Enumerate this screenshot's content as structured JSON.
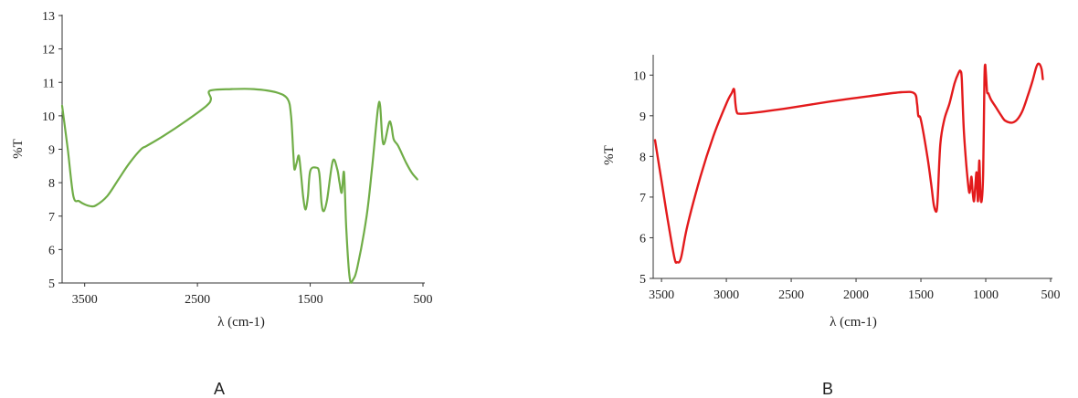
{
  "chart_data": [
    {
      "type": "line",
      "panel_label": "A",
      "xlabel": "λ (cm-1)",
      "ylabel": "%T",
      "xlim": [
        3700,
        500
      ],
      "ylim": [
        5,
        13
      ],
      "x_ticks": [
        3500,
        2500,
        1500,
        500
      ],
      "y_ticks": [
        5,
        6,
        7,
        8,
        9,
        10,
        11,
        12,
        13
      ],
      "grid": false,
      "color": "#70ad47",
      "series": [
        {
          "x": [
            3700,
            3650,
            3600,
            3550,
            3500,
            3450,
            3400,
            3300,
            3200,
            3100,
            3000,
            2950,
            2800,
            2600,
            2420,
            2380,
            2390,
            2200,
            2000,
            1800,
            1700,
            1670,
            1650,
            1640,
            1620,
            1600,
            1580,
            1560,
            1540,
            1520,
            1500,
            1450,
            1420,
            1400,
            1380,
            1350,
            1300,
            1260,
            1240,
            1220,
            1200,
            1180,
            1150,
            1120,
            1080,
            1000,
            950,
            900,
            880,
            860,
            840,
            800,
            780,
            760,
            720,
            650,
            600,
            550
          ],
          "y": [
            10.3,
            9.0,
            7.6,
            7.45,
            7.35,
            7.3,
            7.32,
            7.6,
            8.1,
            8.6,
            9.0,
            9.1,
            9.4,
            9.85,
            10.3,
            10.5,
            10.75,
            10.8,
            10.8,
            10.7,
            10.5,
            10.0,
            8.9,
            8.4,
            8.6,
            8.8,
            8.2,
            7.5,
            7.2,
            7.6,
            8.35,
            8.45,
            8.3,
            7.4,
            7.15,
            7.5,
            8.65,
            8.4,
            8.0,
            7.7,
            8.3,
            6.6,
            5.15,
            5.1,
            5.5,
            7.0,
            8.5,
            10.2,
            10.3,
            9.3,
            9.2,
            9.8,
            9.7,
            9.3,
            9.1,
            8.6,
            8.3,
            8.1
          ]
        }
      ]
    },
    {
      "type": "line",
      "panel_label": "B",
      "xlabel": "λ (cm-1)",
      "ylabel": "%T",
      "xlim": [
        3550,
        500
      ],
      "ylim": [
        5,
        10.5
      ],
      "x_ticks": [
        3500,
        3000,
        2500,
        2000,
        1500,
        1000,
        500
      ],
      "y_ticks": [
        5,
        6,
        7,
        8,
        9,
        10
      ],
      "grid": false,
      "color": "#e31a1c",
      "series": [
        {
          "x": [
            3550,
            3500,
            3450,
            3400,
            3380,
            3350,
            3300,
            3200,
            3100,
            3000,
            2960,
            2940,
            2930,
            2920,
            2900,
            2800,
            2500,
            2200,
            1900,
            1650,
            1550,
            1530,
            1520,
            1500,
            1450,
            1420,
            1400,
            1380,
            1370,
            1350,
            1320,
            1280,
            1240,
            1210,
            1195,
            1185,
            1170,
            1150,
            1130,
            1120,
            1110,
            1100,
            1090,
            1080,
            1070,
            1060,
            1050,
            1040,
            1030,
            1020,
            1010,
            1005,
            1000,
            990,
            980,
            960,
            920,
            880,
            850,
            800,
            760,
            720,
            680,
            640,
            610,
            590,
            570,
            560
          ],
          "y": [
            8.4,
            7.4,
            6.4,
            5.5,
            5.4,
            5.5,
            6.3,
            7.5,
            8.5,
            9.3,
            9.55,
            9.65,
            9.3,
            9.1,
            9.05,
            9.07,
            9.2,
            9.35,
            9.48,
            9.58,
            9.55,
            9.3,
            9.0,
            8.9,
            8.0,
            7.3,
            6.8,
            6.65,
            7.0,
            8.3,
            8.9,
            9.3,
            9.8,
            10.05,
            10.1,
            9.9,
            8.7,
            7.8,
            7.15,
            7.2,
            7.5,
            7.1,
            6.9,
            7.3,
            7.6,
            6.9,
            7.9,
            7.0,
            6.95,
            7.6,
            9.9,
            10.25,
            10.1,
            9.6,
            9.55,
            9.4,
            9.2,
            9.0,
            8.88,
            8.83,
            8.9,
            9.1,
            9.45,
            9.85,
            10.2,
            10.28,
            10.15,
            9.9
          ]
        }
      ]
    }
  ],
  "panels": {
    "a": {
      "label": "A",
      "xlabel": "λ (cm-1)",
      "ylabel": "%T"
    },
    "b": {
      "label": "B",
      "xlabel": "λ (cm-1)",
      "ylabel": "%T"
    }
  }
}
